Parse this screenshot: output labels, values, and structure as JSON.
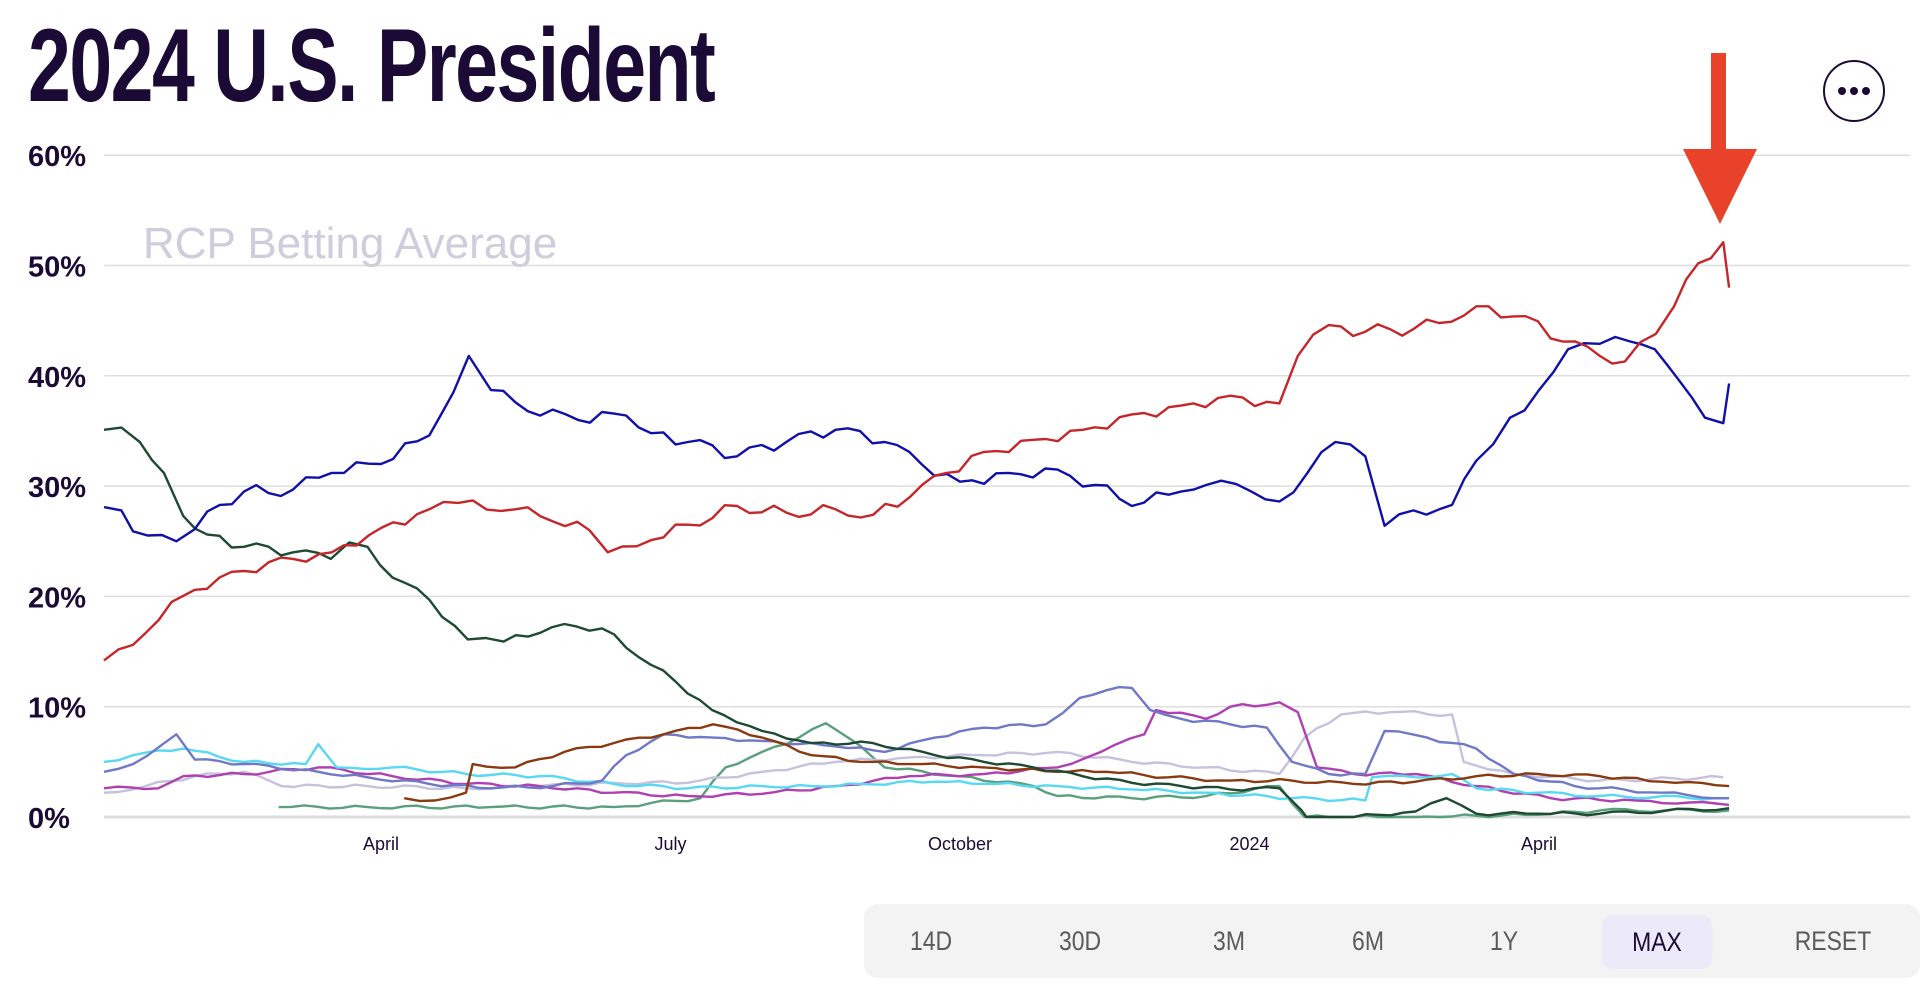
{
  "header": {
    "title": "2024 U.S. President",
    "more_button_label": "More options"
  },
  "annotation": {
    "arrow_color": "#e8432a",
    "arrow_target": "Latest red series value after peak"
  },
  "range_selector": {
    "buttons": [
      {
        "label": "14D",
        "active": false
      },
      {
        "label": "30D",
        "active": false
      },
      {
        "label": "3M",
        "active": false
      },
      {
        "label": "6M",
        "active": false
      },
      {
        "label": "1Y",
        "active": false
      },
      {
        "label": "MAX",
        "active": true
      },
      {
        "label": "RESET",
        "active": false
      }
    ]
  },
  "chart_data": {
    "type": "line",
    "title": "2024 U.S. President",
    "subtitle": "RCP Betting Average",
    "xlabel": "",
    "ylabel": "",
    "x_unit": "months since Jan 1, 2023",
    "xlim": [
      0.13,
      18.85
    ],
    "ylim": [
      0,
      60
    ],
    "yticks": [
      0,
      10,
      20,
      30,
      40,
      50,
      60
    ],
    "ytick_labels": [
      "0%",
      "10%",
      "20%",
      "30%",
      "40%",
      "50%",
      "60%"
    ],
    "xticks": [
      3,
      6,
      9,
      12,
      15
    ],
    "xtick_labels": [
      "April",
      "July",
      "October",
      "2024",
      "April"
    ],
    "grid": true,
    "legend": "none",
    "series": [
      {
        "name": "red",
        "color": "#c4262a",
        "x": [
          0.13,
          0.43,
          0.83,
          1.07,
          1.58,
          2.09,
          2.49,
          3.0,
          3.5,
          3.95,
          4.39,
          4.78,
          5.16,
          5.35,
          5.8,
          6.18,
          6.69,
          7.2,
          7.71,
          8.1,
          8.48,
          8.86,
          9.25,
          9.76,
          10.27,
          10.78,
          11.29,
          11.8,
          12.31,
          12.5,
          12.82,
          13.2,
          13.71,
          14.09,
          14.35,
          14.86,
          15.25,
          15.63,
          15.89,
          16.21,
          16.4,
          16.65,
          16.91,
          16.97
        ],
        "values": [
          14.2,
          15.6,
          19.5,
          20.6,
          22.3,
          23.4,
          24.0,
          26.2,
          27.9,
          28.7,
          27.9,
          26.8,
          26.0,
          24.0,
          25.1,
          26.5,
          28.2,
          27.6,
          27.9,
          27.4,
          29.0,
          31.2,
          33.1,
          34.2,
          35.1,
          36.5,
          37.3,
          38.2,
          37.5,
          41.8,
          44.6,
          44.0,
          44.3,
          44.9,
          46.3,
          45.4,
          43.1,
          41.8,
          41.3,
          43.8,
          46.3,
          50.2,
          52.1,
          48.0
        ]
      },
      {
        "name": "blue",
        "color": "#1010a8",
        "x": [
          0.13,
          0.31,
          0.43,
          0.88,
          1.07,
          1.33,
          1.58,
          2.09,
          2.49,
          3.0,
          3.5,
          3.75,
          3.91,
          4.14,
          4.52,
          5.04,
          5.54,
          5.8,
          6.18,
          6.69,
          7.2,
          7.71,
          8.22,
          8.6,
          9.0,
          9.5,
          10.01,
          10.4,
          10.78,
          11.29,
          11.55,
          12.02,
          12.31,
          12.6,
          12.89,
          13.2,
          13.4,
          13.7,
          14.1,
          14.35,
          14.7,
          15.0,
          15.3,
          15.63,
          15.95,
          16.2,
          16.45,
          16.72,
          16.91,
          16.97
        ],
        "values": [
          28.1,
          27.8,
          25.9,
          25.0,
          26.1,
          28.3,
          29.5,
          29.7,
          31.2,
          32.0,
          34.6,
          38.5,
          41.8,
          38.7,
          36.8,
          36.0,
          36.4,
          34.8,
          34.0,
          32.7,
          34.0,
          35.1,
          34.0,
          32.0,
          30.4,
          31.2,
          31.5,
          30.1,
          28.2,
          29.5,
          30.1,
          29.5,
          28.6,
          31.2,
          34.0,
          32.7,
          26.4,
          27.8,
          28.3,
          32.3,
          36.2,
          38.7,
          42.4,
          42.9,
          43.1,
          42.4,
          39.6,
          36.2,
          35.7,
          39.3
        ]
      },
      {
        "name": "dark-green",
        "color": "#1e4a32",
        "x": [
          0.13,
          0.31,
          0.5,
          0.75,
          0.95,
          1.2,
          1.58,
          2.09,
          2.48,
          2.67,
          2.86,
          3.12,
          3.5,
          3.9,
          4.27,
          4.65,
          4.9,
          5.29,
          5.67,
          6.05,
          6.43,
          6.95,
          7.46,
          8.1,
          8.74,
          9.25,
          9.76,
          10.27,
          10.78,
          11.29,
          11.8,
          12.31,
          12.54,
          12.59,
          13.08,
          13.72,
          14.04,
          14.35,
          14.99,
          15.63,
          16.97
        ],
        "values": [
          35.1,
          35.3,
          34.0,
          31.2,
          27.3,
          25.6,
          24.5,
          24.0,
          23.4,
          24.9,
          24.5,
          21.7,
          19.7,
          16.1,
          15.9,
          16.7,
          17.5,
          17.1,
          14.5,
          12.3,
          9.7,
          7.8,
          6.7,
          6.7,
          5.6,
          5.0,
          4.5,
          3.7,
          3.1,
          2.8,
          2.5,
          2.6,
          0.6,
          0.0,
          0.0,
          0.5,
          1.7,
          0.3,
          0.3,
          0.3,
          0.8
        ]
      },
      {
        "name": "brown",
        "color": "#8a3a10",
        "x": [
          3.24,
          3.56,
          3.88,
          3.95,
          4.39,
          4.9,
          5.41,
          5.93,
          6.44,
          6.95,
          7.46,
          7.97,
          8.48,
          9.25,
          10.01,
          10.52,
          11.16,
          11.8,
          12.44,
          13.08,
          13.72,
          14.35,
          14.99,
          15.63,
          16.27,
          16.97
        ],
        "values": [
          1.7,
          1.5,
          2.2,
          4.8,
          4.5,
          5.9,
          6.7,
          7.5,
          8.4,
          7.2,
          5.6,
          5.0,
          4.8,
          4.5,
          4.1,
          4.1,
          3.6,
          3.3,
          3.3,
          3.0,
          3.2,
          3.7,
          3.9,
          3.7,
          3.2,
          2.8
        ]
      },
      {
        "name": "slate-blue",
        "color": "#7078c8",
        "x": [
          0.13,
          0.43,
          0.88,
          1.07,
          1.58,
          2.35,
          2.86,
          3.5,
          4.14,
          4.78,
          5.29,
          5.54,
          5.93,
          6.44,
          6.95,
          7.71,
          8.22,
          8.74,
          9.25,
          9.89,
          10.24,
          10.52,
          10.78,
          10.97,
          11.29,
          11.8,
          12.18,
          12.44,
          12.82,
          13.2,
          13.4,
          13.84,
          14.35,
          14.74,
          15.37,
          16.27,
          16.97
        ],
        "values": [
          4.1,
          4.8,
          7.5,
          5.2,
          4.8,
          4.1,
          3.6,
          3.0,
          2.6,
          2.8,
          3.3,
          5.6,
          7.5,
          7.2,
          6.9,
          6.4,
          5.9,
          7.2,
          8.1,
          8.4,
          10.8,
          11.5,
          11.7,
          9.7,
          8.9,
          8.4,
          8.1,
          5.0,
          3.9,
          3.9,
          7.8,
          7.2,
          6.2,
          3.9,
          2.8,
          2.2,
          1.7
        ]
      },
      {
        "name": "cyan",
        "color": "#57d9f2",
        "x": [
          0.13,
          0.43,
          0.95,
          1.58,
          2.22,
          2.35,
          2.54,
          3.12,
          3.88,
          4.65,
          5.41,
          6.18,
          6.95,
          7.46,
          7.97,
          8.74,
          9.25,
          10.01,
          10.78,
          11.55,
          12.44,
          13.2,
          13.27,
          13.72,
          14.1,
          14.35,
          14.99,
          15.63,
          16.97
        ],
        "values": [
          5.0,
          5.6,
          6.2,
          5.0,
          4.8,
          6.6,
          4.5,
          4.5,
          3.9,
          3.7,
          3.0,
          2.6,
          2.8,
          2.8,
          3.0,
          3.2,
          3.0,
          2.8,
          2.5,
          2.2,
          1.7,
          1.5,
          3.6,
          3.6,
          3.9,
          2.6,
          2.2,
          1.9,
          1.7
        ]
      },
      {
        "name": "magenta",
        "color": "#b040b0",
        "x": [
          0.13,
          0.69,
          0.95,
          1.58,
          2.35,
          3.12,
          3.88,
          4.65,
          5.41,
          6.18,
          6.95,
          7.71,
          8.48,
          9.25,
          10.01,
          10.46,
          10.91,
          11.03,
          11.55,
          11.8,
          12.31,
          12.5,
          12.7,
          13.08,
          13.72,
          14.35,
          15.12,
          16.01,
          16.97
        ],
        "values": [
          2.6,
          2.6,
          3.7,
          3.9,
          4.5,
          3.7,
          3.0,
          2.8,
          2.2,
          1.9,
          2.1,
          2.8,
          3.7,
          3.9,
          4.5,
          5.9,
          7.5,
          9.7,
          8.9,
          10.0,
          10.4,
          9.5,
          4.5,
          3.9,
          3.9,
          2.8,
          1.7,
          1.5,
          1.1
        ]
      },
      {
        "name": "lavender",
        "color": "#c5c2dd",
        "x": [
          0.13,
          0.56,
          1.07,
          1.58,
          1.97,
          2.86,
          3.88,
          4.65,
          5.41,
          6.18,
          6.95,
          7.71,
          8.48,
          9.25,
          10.01,
          10.78,
          11.55,
          12.31,
          12.57,
          12.95,
          13.46,
          14.1,
          14.22,
          14.74,
          15.63,
          16.91
        ],
        "values": [
          2.2,
          2.8,
          3.7,
          4.1,
          2.8,
          2.8,
          2.6,
          2.8,
          3.1,
          3.1,
          4.1,
          5.0,
          5.4,
          5.6,
          5.9,
          5.0,
          4.5,
          3.9,
          7.2,
          9.3,
          9.5,
          9.3,
          5.0,
          3.9,
          3.3,
          3.6
        ]
      },
      {
        "name": "teal-green",
        "color": "#5aa07c",
        "x": [
          1.94,
          2.86,
          4.14,
          5.41,
          6.31,
          6.57,
          6.95,
          7.33,
          7.61,
          7.84,
          8.22,
          8.99,
          9.76,
          10.01,
          10.78,
          11.55,
          12.31,
          12.57,
          13.72,
          14.99,
          15.63,
          16.97
        ],
        "values": [
          0.9,
          0.9,
          0.9,
          0.9,
          1.7,
          4.5,
          5.9,
          7.2,
          8.5,
          7.2,
          4.5,
          3.7,
          2.8,
          1.9,
          1.7,
          1.9,
          2.8,
          0.0,
          0.0,
          0.2,
          0.6,
          0.6
        ]
      }
    ]
  }
}
